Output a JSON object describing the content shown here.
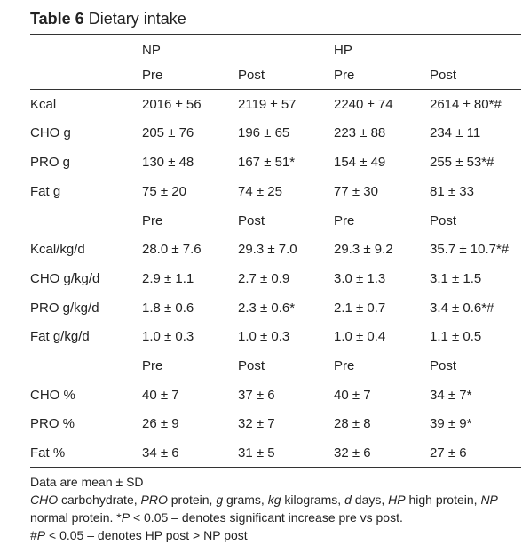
{
  "title": {
    "label": "Table 6",
    "text": "Dietary intake"
  },
  "table": {
    "group_headers": [
      "NP",
      "HP"
    ],
    "sections": [
      {
        "subheaders": [
          "Pre",
          "Post",
          "Pre",
          "Post"
        ],
        "rows": [
          [
            "Kcal",
            "2016 ± 56",
            "2119 ± 57",
            "2240 ± 74",
            "2614 ± 80*#"
          ],
          [
            "CHO g",
            "205 ± 76",
            "196 ± 65",
            "223 ± 88",
            "234 ± 11"
          ],
          [
            "PRO g",
            "130 ± 48",
            "167 ± 51*",
            "154 ± 49",
            "255 ± 53*#"
          ],
          [
            "Fat g",
            "75 ± 20",
            "74 ± 25",
            "77 ± 30",
            "81 ± 33"
          ]
        ]
      },
      {
        "subheaders": [
          "Pre",
          "Post",
          "Pre",
          "Post"
        ],
        "rows": [
          [
            "Kcal/kg/d",
            "28.0 ± 7.6",
            "29.3 ± 7.0",
            "29.3 ± 9.2",
            "35.7 ± 10.7*#"
          ],
          [
            "CHO g/kg/d",
            "2.9 ± 1.1",
            "2.7 ± 0.9",
            "3.0 ± 1.3",
            "3.1 ± 1.5"
          ],
          [
            "PRO g/kg/d",
            "1.8 ± 0.6",
            "2.3 ± 0.6*",
            "2.1 ± 0.7",
            "3.4 ± 0.6*#"
          ],
          [
            "Fat g/kg/d",
            "1.0 ± 0.3",
            "1.0 ± 0.3",
            "1.0 ± 0.4",
            "1.1 ± 0.5"
          ]
        ]
      },
      {
        "subheaders": [
          "Pre",
          "Post",
          "Pre",
          "Post"
        ],
        "rows": [
          [
            "CHO %",
            "40 ± 7",
            "37 ± 6",
            "40 ± 7",
            "34 ± 7*"
          ],
          [
            "PRO %",
            "26 ± 9",
            "32 ± 7",
            "28 ± 8",
            "39 ± 9*"
          ],
          [
            "Fat %",
            "34 ± 6",
            "31 ± 5",
            "32 ± 6",
            "27 ± 6"
          ]
        ]
      }
    ]
  },
  "notes": [
    [
      {
        "text": "Data are mean ± SD"
      }
    ],
    [
      {
        "text": "CHO",
        "italic": true
      },
      {
        "text": " carbohydrate, "
      },
      {
        "text": "PRO",
        "italic": true
      },
      {
        "text": " protein, "
      },
      {
        "text": "g",
        "italic": true
      },
      {
        "text": " grams, "
      },
      {
        "text": "kg",
        "italic": true
      },
      {
        "text": " kilograms, "
      },
      {
        "text": "d",
        "italic": true
      },
      {
        "text": " days, "
      },
      {
        "text": "HP",
        "italic": true
      },
      {
        "text": " high protein, "
      },
      {
        "text": "NP",
        "italic": true
      },
      {
        "text": " normal protein. *"
      },
      {
        "text": "P",
        "italic": true
      },
      {
        "text": " < 0.05 – denotes significant increase pre vs post."
      }
    ],
    [
      {
        "text": "#"
      },
      {
        "text": "P",
        "italic": true
      },
      {
        "text": " < 0.05 – denotes HP post > NP post"
      }
    ]
  ]
}
